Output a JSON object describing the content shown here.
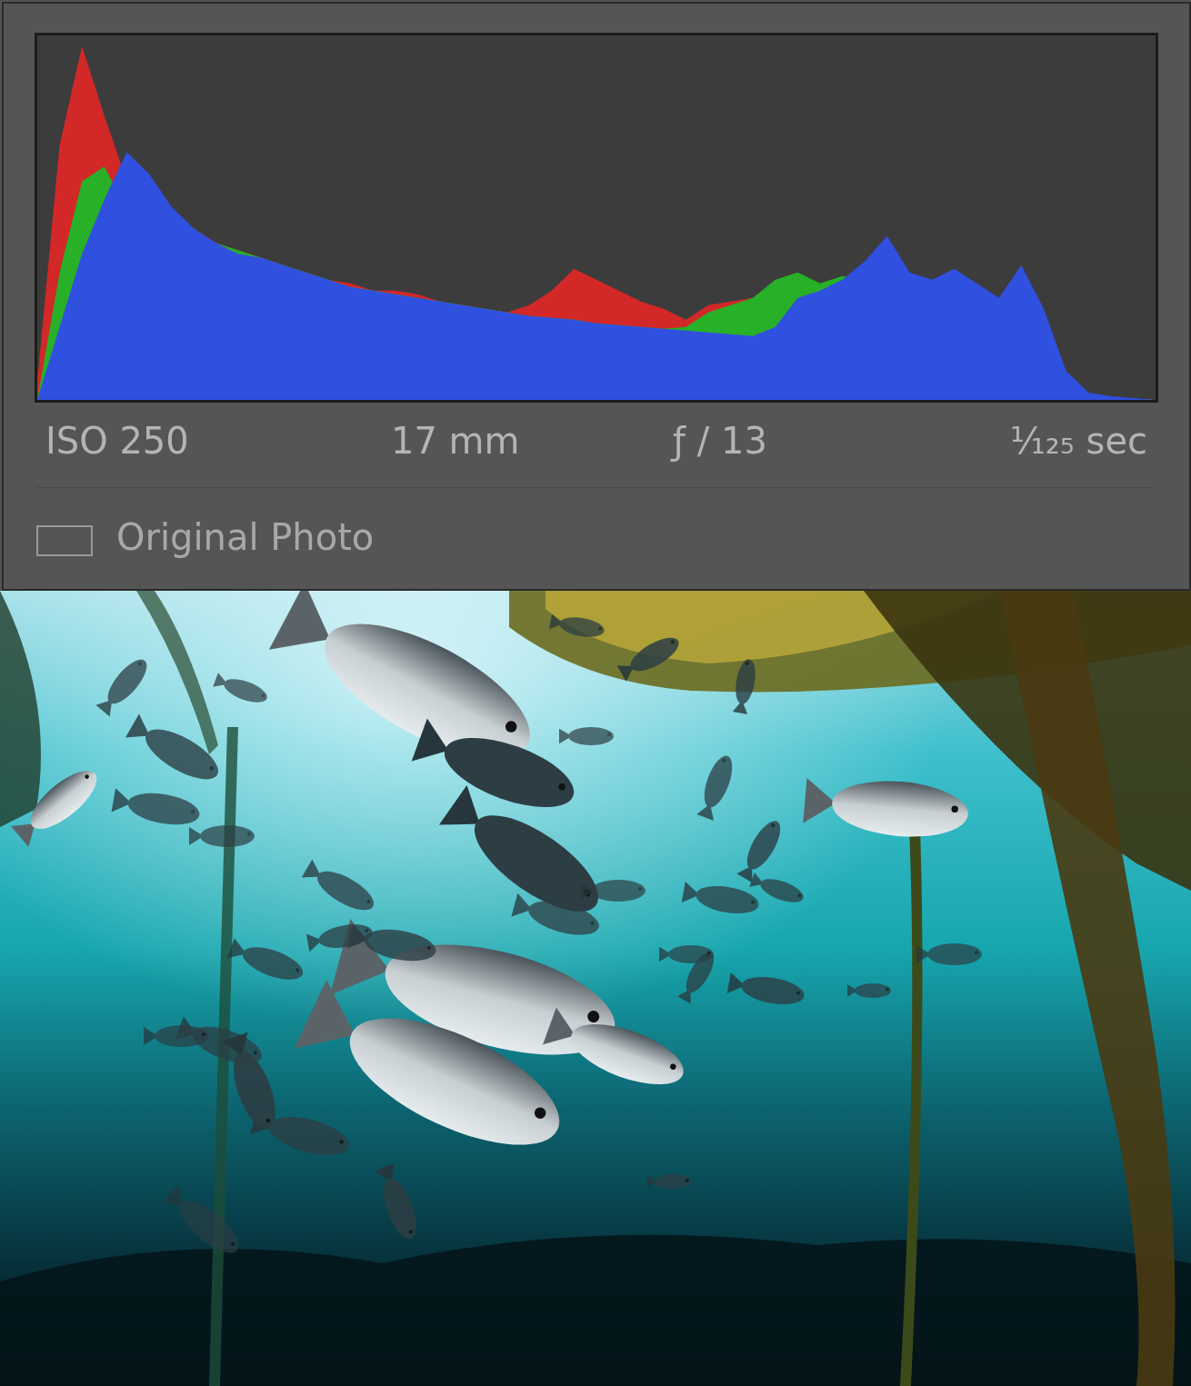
{
  "chart_data": {
    "type": "area",
    "stacked": false,
    "tick_labels": false,
    "grid": false,
    "xlim": [
      0,
      100
    ],
    "ylim": [
      0,
      100
    ],
    "x": [
      0,
      2,
      4,
      6,
      8,
      10,
      12,
      14,
      16,
      18,
      20,
      22,
      24,
      26,
      28,
      30,
      32,
      34,
      36,
      38,
      40,
      42,
      44,
      46,
      48,
      50,
      52,
      54,
      56,
      58,
      60,
      62,
      64,
      66,
      68,
      70,
      72,
      74,
      76,
      78,
      80,
      82,
      84,
      86,
      88,
      90,
      92,
      94,
      96,
      98,
      100
    ],
    "series": [
      {
        "color": "#d22828",
        "values": [
          5,
          70,
          97,
          78,
          60,
          55,
          50,
          47,
          43,
          41,
          39,
          37,
          35,
          33,
          32,
          30,
          30,
          29,
          27,
          26,
          25,
          24,
          26,
          30,
          36,
          33,
          30,
          27,
          25,
          22,
          26,
          27,
          28,
          28,
          23,
          15,
          14,
          13,
          12,
          11,
          10,
          8,
          6,
          4,
          3,
          2,
          1.5,
          1,
          0.5,
          0.3,
          0
        ]
      },
      {
        "color": "#28b028",
        "values": [
          0,
          35,
          60,
          64,
          52,
          51,
          48,
          46,
          43,
          41,
          39,
          37,
          35,
          33,
          31,
          30,
          29,
          28,
          27,
          26,
          25,
          24,
          23,
          22.5,
          22,
          21,
          20.5,
          20,
          19.5,
          20,
          24,
          26,
          28,
          33,
          35,
          32,
          34,
          33,
          35,
          32,
          30,
          28,
          22,
          12,
          6,
          3,
          2,
          1,
          0.5,
          0.3,
          0
        ]
      },
      {
        "color": "#3050e0",
        "values": [
          0,
          20,
          40,
          55,
          68,
          62,
          53,
          47,
          43,
          40,
          39,
          37,
          35,
          33,
          31,
          30,
          29,
          28,
          27,
          26,
          25,
          24,
          23,
          22.5,
          22,
          21,
          20.5,
          20,
          19.5,
          19,
          18.5,
          18,
          17.5,
          20,
          28,
          30,
          33,
          38,
          45,
          35,
          33,
          36,
          32,
          28,
          37,
          25,
          8,
          2,
          1,
          0.5,
          0
        ]
      }
    ]
  },
  "panel": {
    "exif": [
      "ISO 250",
      "17 mm",
      "ƒ / 13",
      "¹⁄₁₂₅ sec"
    ],
    "checkbox_label": "Original Photo"
  }
}
